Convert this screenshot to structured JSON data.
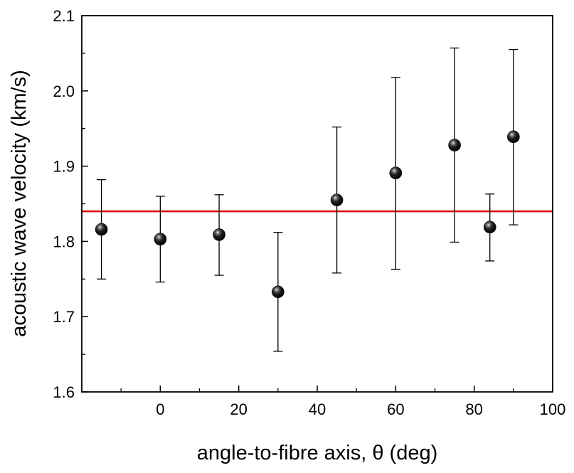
{
  "chart_data": {
    "type": "scatter",
    "title": "",
    "xlabel": "angle-to-fibre axis, θ (deg)",
    "ylabel": "acoustic wave velocity (km/s)",
    "xlim": [
      -20,
      100
    ],
    "ylim": [
      1.6,
      2.1
    ],
    "x_ticks": [
      0,
      20,
      40,
      60,
      80,
      100
    ],
    "x_tick_labels": [
      "0",
      "20",
      "40",
      "60",
      "80",
      "100"
    ],
    "y_ticks": [
      1.6,
      1.7,
      1.8,
      1.9,
      2.0,
      2.1
    ],
    "y_tick_labels": [
      "1.6",
      "1.7",
      "1.8",
      "1.9",
      "2.0",
      "2.1"
    ],
    "grid": false,
    "series": [
      {
        "marker": "black sphere",
        "x": [
          -15,
          0,
          15,
          30,
          45,
          60,
          75,
          84,
          90
        ],
        "y": [
          1.816,
          1.803,
          1.809,
          1.733,
          1.855,
          1.891,
          1.928,
          1.819,
          1.939
        ],
        "error_low": [
          1.75,
          1.746,
          1.755,
          1.654,
          1.758,
          1.763,
          1.799,
          1.774,
          1.822
        ],
        "error_high": [
          1.882,
          1.86,
          1.862,
          1.812,
          1.952,
          2.018,
          2.057,
          1.863,
          2.055
        ]
      }
    ],
    "reference_line": {
      "y": 1.84,
      "color": "#e01010"
    }
  }
}
